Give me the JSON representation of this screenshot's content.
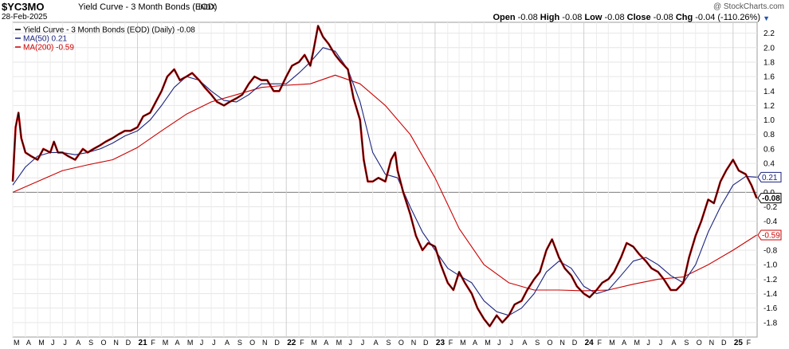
{
  "header": {
    "symbol": "$YC3MO",
    "description": "Yield Curve - 3 Month Bonds (EOD)",
    "market": "INDX",
    "date": "28-Feb-2025",
    "brand": "@ StockCharts.com",
    "ohlc": [
      {
        "label": "Open",
        "value": "-0.08"
      },
      {
        "label": "High",
        "value": "-0.08"
      },
      {
        "label": "Low",
        "value": "-0.08"
      },
      {
        "label": "Close",
        "value": "-0.08"
      },
      {
        "label": "Chg",
        "value": "-0.04 (-110.26%)"
      }
    ]
  },
  "legend": [
    {
      "text": "Yield Curve - 3 Month Bonds (EOD) (Daily) -0.08",
      "color": "#000000"
    },
    {
      "text": "MA(50) 0.21",
      "color": "#1a237e"
    },
    {
      "text": "MA(200) -0.59",
      "color": "#cc0000"
    }
  ],
  "chart_data": {
    "type": "line",
    "x_start": "2020-03",
    "x_end": "2025-02",
    "ylim": [
      -2.0,
      2.35
    ],
    "y_ticks": [
      "2.2",
      "2.0",
      "1.8",
      "1.6",
      "1.4",
      "1.2",
      "1.0",
      "0.8",
      "0.6",
      "0.4",
      "0.2",
      "0.0",
      "-0.2",
      "-0.4",
      "-0.6",
      "-0.8",
      "-1.0",
      "-1.2",
      "-1.4",
      "-1.6",
      "-1.8"
    ],
    "reference_line": 0.0,
    "last_value_labels": [
      {
        "text": "0.21",
        "value": 0.21,
        "color": "#1a237e"
      },
      {
        "text": "-0.08",
        "value": -0.08,
        "color": "#000000",
        "bold": true
      },
      {
        "text": "-0.59",
        "value": -0.59,
        "color": "#cc0000"
      }
    ],
    "x_labels": [
      "M",
      "A",
      "M",
      "J",
      "J",
      "A",
      "S",
      "O",
      "N",
      "D",
      "21",
      "F",
      "M",
      "A",
      "M",
      "J",
      "J",
      "A",
      "S",
      "O",
      "N",
      "D",
      "22",
      "F",
      "M",
      "A",
      "M",
      "J",
      "J",
      "A",
      "S",
      "O",
      "N",
      "D",
      "23",
      "F",
      "M",
      "A",
      "M",
      "J",
      "J",
      "A",
      "S",
      "O",
      "N",
      "D",
      "24",
      "F",
      "M",
      "A",
      "M",
      "J",
      "J",
      "A",
      "S",
      "O",
      "N",
      "D",
      "25",
      "F"
    ],
    "year_labels": [
      "21",
      "22",
      "23",
      "24",
      "25"
    ],
    "series": [
      {
        "name": "Yield Curve - 3 Month Bonds (EOD) (Daily)",
        "color": "#000000",
        "points": [
          [
            "2020-03-01",
            0.15
          ],
          [
            "2020-03-08",
            0.9
          ],
          [
            "2020-03-15",
            1.1
          ],
          [
            "2020-03-22",
            0.75
          ],
          [
            "2020-04-01",
            0.55
          ],
          [
            "2020-04-15",
            0.5
          ],
          [
            "2020-05-01",
            0.45
          ],
          [
            "2020-05-15",
            0.6
          ],
          [
            "2020-06-01",
            0.55
          ],
          [
            "2020-06-10",
            0.7
          ],
          [
            "2020-06-20",
            0.55
          ],
          [
            "2020-07-01",
            0.55
          ],
          [
            "2020-07-15",
            0.5
          ],
          [
            "2020-08-01",
            0.45
          ],
          [
            "2020-08-20",
            0.6
          ],
          [
            "2020-09-01",
            0.55
          ],
          [
            "2020-09-15",
            0.6
          ],
          [
            "2020-10-01",
            0.65
          ],
          [
            "2020-10-15",
            0.7
          ],
          [
            "2020-11-01",
            0.75
          ],
          [
            "2020-11-15",
            0.8
          ],
          [
            "2020-12-01",
            0.85
          ],
          [
            "2020-12-15",
            0.85
          ],
          [
            "2021-01-01",
            0.9
          ],
          [
            "2021-01-15",
            1.05
          ],
          [
            "2021-02-01",
            1.1
          ],
          [
            "2021-02-15",
            1.25
          ],
          [
            "2021-03-01",
            1.4
          ],
          [
            "2021-03-15",
            1.6
          ],
          [
            "2021-04-01",
            1.7
          ],
          [
            "2021-04-15",
            1.55
          ],
          [
            "2021-05-01",
            1.6
          ],
          [
            "2021-05-15",
            1.65
          ],
          [
            "2021-06-01",
            1.55
          ],
          [
            "2021-06-15",
            1.45
          ],
          [
            "2021-07-01",
            1.35
          ],
          [
            "2021-07-15",
            1.25
          ],
          [
            "2021-08-01",
            1.2
          ],
          [
            "2021-08-15",
            1.25
          ],
          [
            "2021-09-01",
            1.3
          ],
          [
            "2021-09-15",
            1.35
          ],
          [
            "2021-10-01",
            1.5
          ],
          [
            "2021-10-15",
            1.6
          ],
          [
            "2021-11-01",
            1.55
          ],
          [
            "2021-11-15",
            1.55
          ],
          [
            "2021-12-01",
            1.4
          ],
          [
            "2021-12-15",
            1.4
          ],
          [
            "2022-01-01",
            1.6
          ],
          [
            "2022-01-15",
            1.75
          ],
          [
            "2022-02-01",
            1.8
          ],
          [
            "2022-02-15",
            1.9
          ],
          [
            "2022-03-01",
            1.75
          ],
          [
            "2022-03-10",
            2.0
          ],
          [
            "2022-03-20",
            2.3
          ],
          [
            "2022-04-01",
            2.15
          ],
          [
            "2022-04-15",
            2.05
          ],
          [
            "2022-05-01",
            1.9
          ],
          [
            "2022-05-15",
            1.8
          ],
          [
            "2022-06-01",
            1.7
          ],
          [
            "2022-06-15",
            1.3
          ],
          [
            "2022-07-01",
            1.0
          ],
          [
            "2022-07-10",
            0.45
          ],
          [
            "2022-07-20",
            0.15
          ],
          [
            "2022-08-01",
            0.15
          ],
          [
            "2022-08-15",
            0.2
          ],
          [
            "2022-09-01",
            0.15
          ],
          [
            "2022-09-15",
            0.45
          ],
          [
            "2022-09-25",
            0.55
          ],
          [
            "2022-10-01",
            0.3
          ],
          [
            "2022-10-15",
            0.0
          ],
          [
            "2022-11-01",
            -0.3
          ],
          [
            "2022-11-15",
            -0.6
          ],
          [
            "2022-12-01",
            -0.8
          ],
          [
            "2022-12-15",
            -0.7
          ],
          [
            "2023-01-01",
            -0.75
          ],
          [
            "2023-01-15",
            -1.0
          ],
          [
            "2023-02-01",
            -1.25
          ],
          [
            "2023-02-15",
            -1.35
          ],
          [
            "2023-03-01",
            -1.1
          ],
          [
            "2023-03-15",
            -1.25
          ],
          [
            "2023-04-01",
            -1.4
          ],
          [
            "2023-04-15",
            -1.6
          ],
          [
            "2023-05-01",
            -1.75
          ],
          [
            "2023-05-15",
            -1.85
          ],
          [
            "2023-06-01",
            -1.7
          ],
          [
            "2023-06-15",
            -1.8
          ],
          [
            "2023-07-01",
            -1.7
          ],
          [
            "2023-07-15",
            -1.55
          ],
          [
            "2023-08-01",
            -1.5
          ],
          [
            "2023-08-15",
            -1.35
          ],
          [
            "2023-09-01",
            -1.2
          ],
          [
            "2023-09-15",
            -1.1
          ],
          [
            "2023-10-01",
            -0.8
          ],
          [
            "2023-10-15",
            -0.65
          ],
          [
            "2023-11-01",
            -0.9
          ],
          [
            "2023-11-15",
            -1.05
          ],
          [
            "2023-12-01",
            -1.15
          ],
          [
            "2023-12-15",
            -1.3
          ],
          [
            "2024-01-01",
            -1.4
          ],
          [
            "2024-01-15",
            -1.45
          ],
          [
            "2024-02-01",
            -1.35
          ],
          [
            "2024-02-15",
            -1.25
          ],
          [
            "2024-03-01",
            -1.2
          ],
          [
            "2024-03-15",
            -1.1
          ],
          [
            "2024-04-01",
            -0.9
          ],
          [
            "2024-04-15",
            -0.7
          ],
          [
            "2024-05-01",
            -0.75
          ],
          [
            "2024-05-15",
            -0.85
          ],
          [
            "2024-06-01",
            -0.95
          ],
          [
            "2024-06-15",
            -1.05
          ],
          [
            "2024-07-01",
            -1.1
          ],
          [
            "2024-07-15",
            -1.2
          ],
          [
            "2024-08-01",
            -1.35
          ],
          [
            "2024-08-15",
            -1.35
          ],
          [
            "2024-09-01",
            -1.25
          ],
          [
            "2024-09-15",
            -0.9
          ],
          [
            "2024-10-01",
            -0.6
          ],
          [
            "2024-10-15",
            -0.4
          ],
          [
            "2024-11-01",
            -0.1
          ],
          [
            "2024-11-15",
            -0.15
          ],
          [
            "2024-12-01",
            0.15
          ],
          [
            "2024-12-15",
            0.3
          ],
          [
            "2025-01-01",
            0.45
          ],
          [
            "2025-01-15",
            0.3
          ],
          [
            "2025-02-01",
            0.25
          ],
          [
            "2025-02-15",
            0.1
          ],
          [
            "2025-02-28",
            -0.08
          ]
        ]
      },
      {
        "name": "MA(50)",
        "color": "#1a237e",
        "points": [
          [
            "2020-03-01",
            0.1
          ],
          [
            "2020-04-01",
            0.35
          ],
          [
            "2020-05-01",
            0.5
          ],
          [
            "2020-06-01",
            0.55
          ],
          [
            "2020-07-01",
            0.55
          ],
          [
            "2020-08-01",
            0.52
          ],
          [
            "2020-09-01",
            0.55
          ],
          [
            "2020-10-01",
            0.6
          ],
          [
            "2020-11-01",
            0.68
          ],
          [
            "2020-12-01",
            0.78
          ],
          [
            "2021-01-01",
            0.85
          ],
          [
            "2021-02-01",
            1.0
          ],
          [
            "2021-03-01",
            1.2
          ],
          [
            "2021-04-01",
            1.45
          ],
          [
            "2021-05-01",
            1.6
          ],
          [
            "2021-06-01",
            1.55
          ],
          [
            "2021-07-01",
            1.4
          ],
          [
            "2021-08-01",
            1.27
          ],
          [
            "2021-09-01",
            1.25
          ],
          [
            "2021-10-01",
            1.35
          ],
          [
            "2021-11-01",
            1.5
          ],
          [
            "2021-12-01",
            1.5
          ],
          [
            "2022-01-01",
            1.5
          ],
          [
            "2022-02-01",
            1.65
          ],
          [
            "2022-03-01",
            1.8
          ],
          [
            "2022-04-01",
            2.0
          ],
          [
            "2022-05-01",
            1.95
          ],
          [
            "2022-06-01",
            1.7
          ],
          [
            "2022-07-01",
            1.25
          ],
          [
            "2022-08-01",
            0.55
          ],
          [
            "2022-09-01",
            0.25
          ],
          [
            "2022-10-01",
            0.2
          ],
          [
            "2022-11-01",
            -0.2
          ],
          [
            "2022-12-01",
            -0.55
          ],
          [
            "2023-01-01",
            -0.8
          ],
          [
            "2023-02-01",
            -1.05
          ],
          [
            "2023-03-01",
            -1.15
          ],
          [
            "2023-04-01",
            -1.25
          ],
          [
            "2023-05-01",
            -1.5
          ],
          [
            "2023-06-01",
            -1.65
          ],
          [
            "2023-07-01",
            -1.7
          ],
          [
            "2023-08-01",
            -1.6
          ],
          [
            "2023-09-01",
            -1.4
          ],
          [
            "2023-10-01",
            -1.1
          ],
          [
            "2023-11-01",
            -0.95
          ],
          [
            "2023-12-01",
            -1.05
          ],
          [
            "2024-01-01",
            -1.3
          ],
          [
            "2024-02-01",
            -1.4
          ],
          [
            "2024-03-01",
            -1.35
          ],
          [
            "2024-04-01",
            -1.15
          ],
          [
            "2024-05-01",
            -0.95
          ],
          [
            "2024-06-01",
            -0.9
          ],
          [
            "2024-07-01",
            -1.0
          ],
          [
            "2024-08-01",
            -1.15
          ],
          [
            "2024-09-01",
            -1.25
          ],
          [
            "2024-10-01",
            -1.0
          ],
          [
            "2024-11-01",
            -0.55
          ],
          [
            "2024-12-01",
            -0.2
          ],
          [
            "2025-01-01",
            0.1
          ],
          [
            "2025-02-01",
            0.22
          ],
          [
            "2025-02-28",
            0.21
          ]
        ]
      },
      {
        "name": "MA(200)",
        "color": "#cc0000",
        "points": [
          [
            "2020-03-01",
            0.0
          ],
          [
            "2020-05-01",
            0.15
          ],
          [
            "2020-07-01",
            0.3
          ],
          [
            "2020-09-01",
            0.38
          ],
          [
            "2020-11-01",
            0.45
          ],
          [
            "2021-01-01",
            0.62
          ],
          [
            "2021-03-01",
            0.85
          ],
          [
            "2021-05-01",
            1.08
          ],
          [
            "2021-07-01",
            1.25
          ],
          [
            "2021-09-01",
            1.35
          ],
          [
            "2021-11-01",
            1.45
          ],
          [
            "2022-01-01",
            1.48
          ],
          [
            "2022-03-01",
            1.5
          ],
          [
            "2022-05-01",
            1.62
          ],
          [
            "2022-07-01",
            1.5
          ],
          [
            "2022-09-01",
            1.2
          ],
          [
            "2022-11-01",
            0.8
          ],
          [
            "2023-01-01",
            0.2
          ],
          [
            "2023-03-01",
            -0.5
          ],
          [
            "2023-05-01",
            -1.0
          ],
          [
            "2023-07-01",
            -1.25
          ],
          [
            "2023-09-01",
            -1.35
          ],
          [
            "2023-11-01",
            -1.35
          ],
          [
            "2024-01-01",
            -1.36
          ],
          [
            "2024-03-01",
            -1.35
          ],
          [
            "2024-05-01",
            -1.27
          ],
          [
            "2024-07-01",
            -1.2
          ],
          [
            "2024-09-01",
            -1.17
          ],
          [
            "2024-11-01",
            -1.0
          ],
          [
            "2025-01-01",
            -0.8
          ],
          [
            "2025-02-28",
            -0.59
          ]
        ]
      }
    ]
  }
}
